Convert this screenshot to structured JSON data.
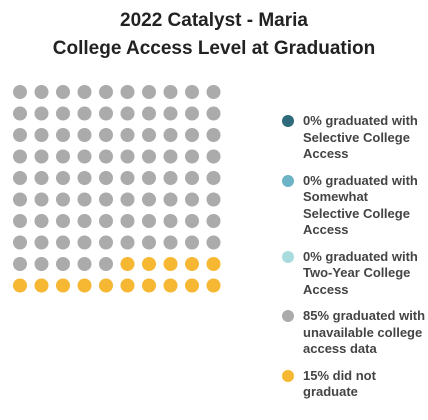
{
  "chart_data": {
    "type": "waffle",
    "title": "2022 Catalyst - Maria",
    "subtitle": "College Access Level at Graduation",
    "categories": [
      "0% graduated with Selective College Access",
      "0% graduated with Somewhat Selective College Access",
      "0% graduated with Two-Year College Access",
      "85% graduated with unavailable college access data",
      "15% did not graduate"
    ],
    "values": [
      0,
      0,
      0,
      85,
      15
    ],
    "colors": [
      "#2d6b7b",
      "#6cb4c5",
      "#a9dcdf",
      "#ababab",
      "#f6b733"
    ]
  }
}
